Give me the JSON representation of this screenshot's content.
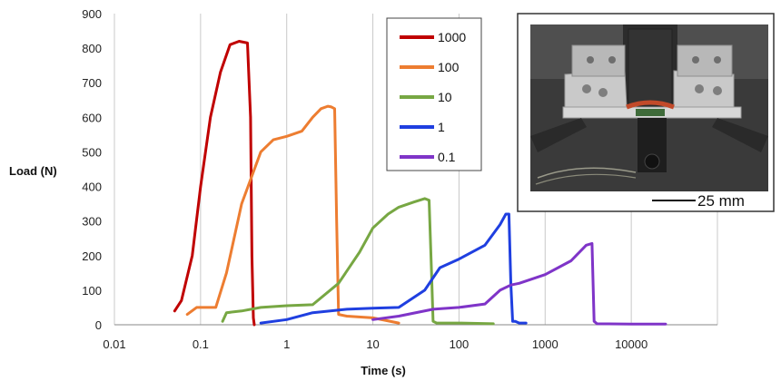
{
  "chart_data": {
    "type": "line",
    "xlabel": "Time (s)",
    "ylabel": "Load (N)",
    "xscale": "log",
    "xlim": [
      0.01,
      100000
    ],
    "ylim": [
      0,
      900
    ],
    "xticks": [
      "0.01",
      "0.1",
      "1",
      "10",
      "100",
      "1000",
      "10000"
    ],
    "yticks": [
      "0",
      "100",
      "200",
      "300",
      "400",
      "500",
      "600",
      "700",
      "800",
      "900"
    ],
    "grid": "vertical",
    "legend_position": "top-center",
    "series": [
      {
        "name": "1000",
        "color": "#c00000",
        "x": [
          0.05,
          0.06,
          0.08,
          0.1,
          0.13,
          0.17,
          0.22,
          0.28,
          0.35,
          0.38,
          0.395,
          0.41,
          0.42
        ],
        "y": [
          40,
          70,
          200,
          400,
          600,
          730,
          810,
          820,
          815,
          600,
          200,
          20,
          0
        ]
      },
      {
        "name": "100",
        "color": "#ed7d31",
        "x": [
          0.07,
          0.09,
          0.15,
          0.2,
          0.3,
          0.5,
          0.7,
          1.0,
          1.5,
          2.0,
          2.5,
          3.0,
          3.3,
          3.6,
          3.8,
          4.0,
          5,
          10,
          20
        ],
        "y": [
          30,
          50,
          50,
          150,
          350,
          500,
          535,
          545,
          560,
          600,
          625,
          632,
          630,
          625,
          300,
          30,
          25,
          20,
          5
        ]
      },
      {
        "name": "10",
        "color": "#77a743",
        "x": [
          0.18,
          0.2,
          0.3,
          0.5,
          1,
          2,
          4,
          7,
          10,
          15,
          20,
          30,
          40,
          45,
          48,
          50,
          55,
          100,
          250
        ],
        "y": [
          10,
          35,
          40,
          50,
          55,
          58,
          120,
          210,
          280,
          320,
          340,
          355,
          365,
          360,
          150,
          10,
          5,
          5,
          3
        ]
      },
      {
        "name": "1",
        "color": "#1f3fe0",
        "x": [
          0.5,
          1,
          2,
          5,
          10,
          20,
          40,
          60,
          100,
          200,
          300,
          350,
          380,
          400,
          420,
          450,
          500,
          600
        ],
        "y": [
          5,
          15,
          35,
          45,
          48,
          50,
          100,
          165,
          190,
          230,
          290,
          320,
          320,
          120,
          10,
          10,
          5,
          5
        ]
      },
      {
        "name": "0.1",
        "color": "#7f34c8",
        "x": [
          10,
          20,
          50,
          100,
          200,
          300,
          400,
          500,
          1000,
          2000,
          3000,
          3500,
          3700,
          4000,
          10000,
          25000
        ],
        "y": [
          15,
          25,
          45,
          50,
          60,
          100,
          115,
          120,
          145,
          185,
          230,
          235,
          10,
          3,
          2,
          2
        ]
      }
    ]
  },
  "inset": {
    "scale_label": "25 mm"
  }
}
